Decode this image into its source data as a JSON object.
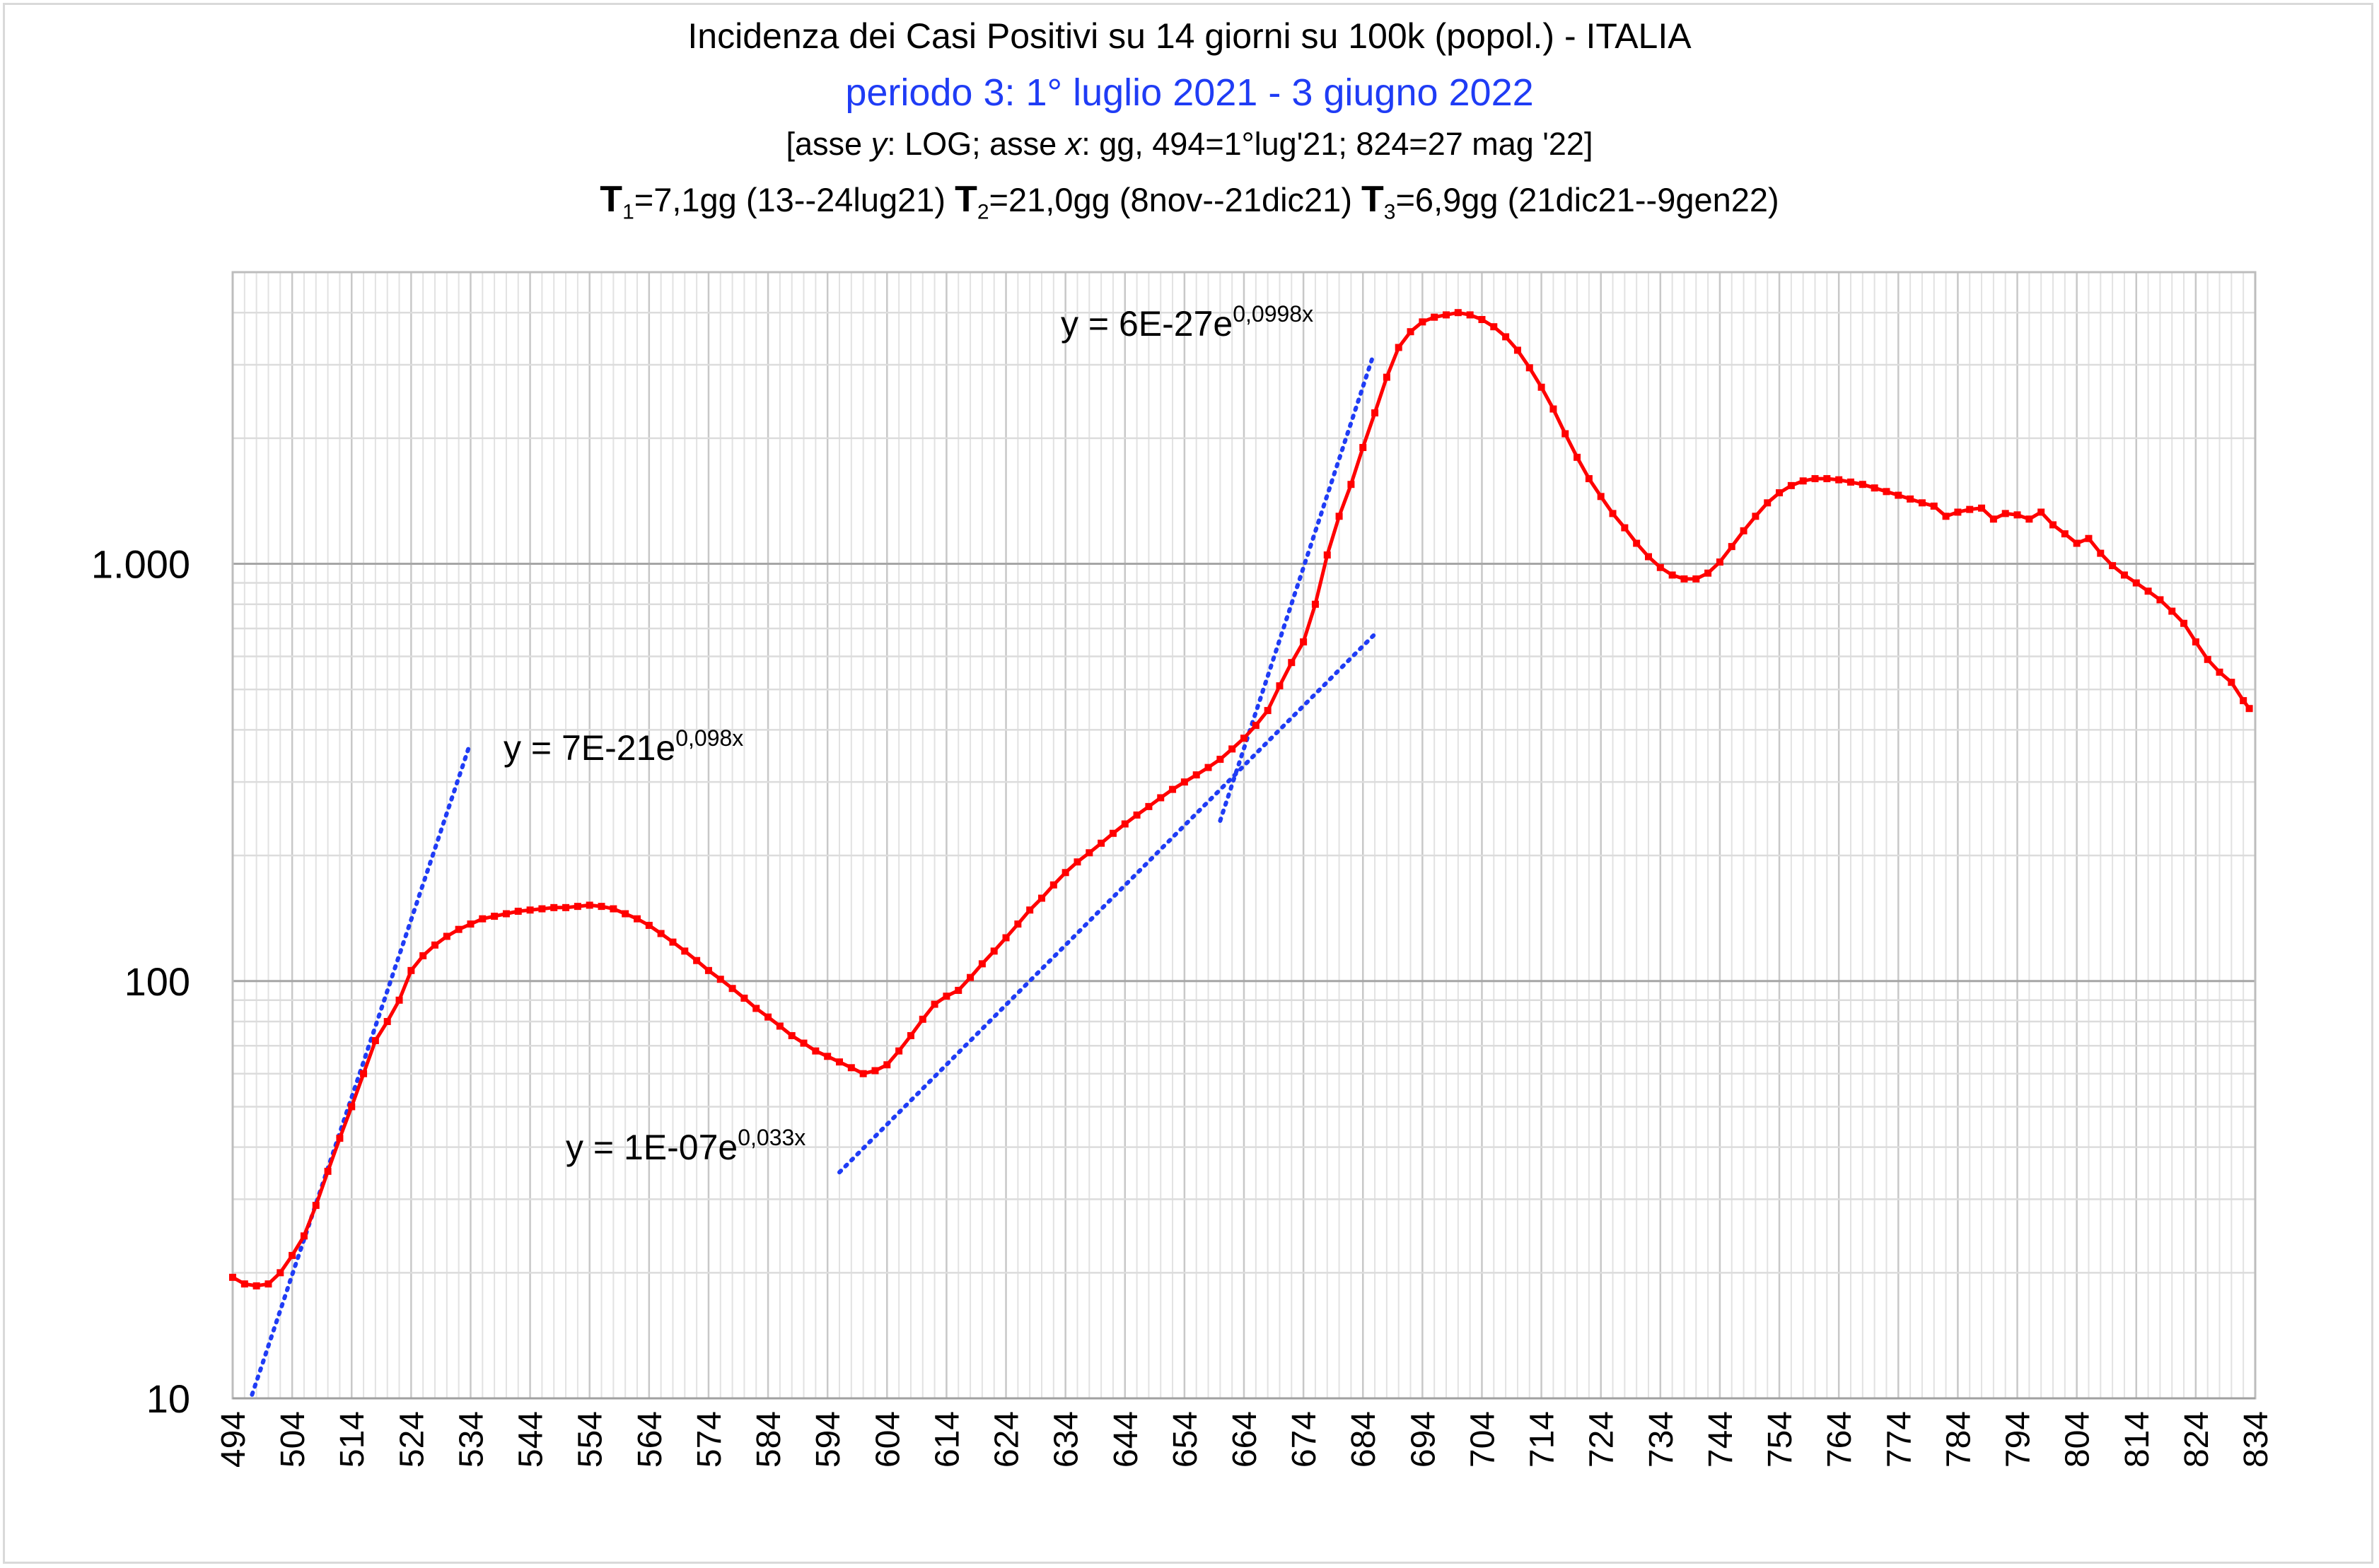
{
  "chart_data": {
    "type": "line",
    "title": "Incidenza dei Casi Positivi su 14 giorni su 100k (popol.) - ITALIA",
    "subtitle": "periodo 3: 1° luglio 2021 - 3 giugno 2022",
    "axis_note": {
      "prefix": "[asse ",
      "y_var": "y",
      "mid1": ": LOG; asse ",
      "x_var": "x",
      "suffix": ": gg, 494=1°lug'21; 824=27 mag '22]"
    },
    "doubling_times": [
      {
        "label": "T",
        "sub": "1",
        "text": "=7,1gg (13--24lug21)"
      },
      {
        "label": "T",
        "sub": "2",
        "text": "=21,0gg (8nov--21dic21)"
      },
      {
        "label": "T",
        "sub": "3",
        "text": "=6,9gg (21dic21--9gen22)"
      }
    ],
    "x_axis": {
      "min": 494,
      "max": 834,
      "ticks": [
        "494",
        "504",
        "514",
        "524",
        "534",
        "544",
        "554",
        "564",
        "574",
        "584",
        "594",
        "604",
        "614",
        "624",
        "634",
        "644",
        "654",
        "664",
        "674",
        "684",
        "694",
        "704",
        "714",
        "724",
        "734",
        "744",
        "754",
        "764",
        "774",
        "784",
        "794",
        "804",
        "814",
        "824",
        "834"
      ]
    },
    "y_axis": {
      "scale": "log",
      "min": 10,
      "max": 5000,
      "tick_labels": [
        {
          "value": 10,
          "label": "10"
        },
        {
          "value": 100,
          "label": "100"
        },
        {
          "value": 1000,
          "label": "1.000"
        }
      ]
    },
    "series": [
      {
        "color": "#ff0000",
        "points": [
          [
            494,
            19.5
          ],
          [
            496,
            18.8
          ],
          [
            498,
            18.6
          ],
          [
            500,
            18.8
          ],
          [
            502,
            20
          ],
          [
            504,
            22
          ],
          [
            506,
            24.5
          ],
          [
            508,
            29
          ],
          [
            510,
            35
          ],
          [
            512,
            42
          ],
          [
            514,
            50
          ],
          [
            516,
            60
          ],
          [
            518,
            72
          ],
          [
            520,
            80
          ],
          [
            522,
            90
          ],
          [
            524,
            106
          ],
          [
            526,
            115
          ],
          [
            528,
            122
          ],
          [
            530,
            128
          ],
          [
            532,
            133
          ],
          [
            534,
            137
          ],
          [
            536,
            141
          ],
          [
            538,
            143
          ],
          [
            540,
            145
          ],
          [
            542,
            147
          ],
          [
            544,
            148
          ],
          [
            546,
            149
          ],
          [
            548,
            150
          ],
          [
            550,
            150
          ],
          [
            552,
            151
          ],
          [
            554,
            152
          ],
          [
            556,
            151
          ],
          [
            558,
            149
          ],
          [
            560,
            145
          ],
          [
            562,
            141
          ],
          [
            564,
            136
          ],
          [
            566,
            130
          ],
          [
            568,
            124
          ],
          [
            570,
            118
          ],
          [
            572,
            112
          ],
          [
            574,
            106
          ],
          [
            576,
            101
          ],
          [
            578,
            96
          ],
          [
            580,
            91
          ],
          [
            582,
            86
          ],
          [
            584,
            82
          ],
          [
            586,
            78
          ],
          [
            588,
            74
          ],
          [
            590,
            71
          ],
          [
            592,
            68
          ],
          [
            594,
            66
          ],
          [
            596,
            64
          ],
          [
            598,
            62
          ],
          [
            600,
            60
          ],
          [
            602,
            61
          ],
          [
            604,
            63
          ],
          [
            606,
            68
          ],
          [
            608,
            74
          ],
          [
            610,
            81
          ],
          [
            612,
            88
          ],
          [
            614,
            92
          ],
          [
            616,
            95
          ],
          [
            618,
            102
          ],
          [
            620,
            110
          ],
          [
            622,
            118
          ],
          [
            624,
            127
          ],
          [
            626,
            137
          ],
          [
            628,
            148
          ],
          [
            630,
            158
          ],
          [
            632,
            170
          ],
          [
            634,
            182
          ],
          [
            636,
            193
          ],
          [
            638,
            203
          ],
          [
            640,
            214
          ],
          [
            642,
            226
          ],
          [
            644,
            238
          ],
          [
            646,
            250
          ],
          [
            648,
            262
          ],
          [
            650,
            275
          ],
          [
            652,
            288
          ],
          [
            654,
            300
          ],
          [
            656,
            312
          ],
          [
            658,
            325
          ],
          [
            660,
            340
          ],
          [
            662,
            360
          ],
          [
            664,
            382
          ],
          [
            666,
            410
          ],
          [
            668,
            445
          ],
          [
            670,
            510
          ],
          [
            672,
            580
          ],
          [
            674,
            650
          ],
          [
            676,
            800
          ],
          [
            678,
            1050
          ],
          [
            680,
            1300
          ],
          [
            682,
            1550
          ],
          [
            684,
            1900
          ],
          [
            686,
            2300
          ],
          [
            688,
            2800
          ],
          [
            690,
            3300
          ],
          [
            692,
            3600
          ],
          [
            694,
            3800
          ],
          [
            696,
            3900
          ],
          [
            698,
            3950
          ],
          [
            700,
            4000
          ],
          [
            702,
            3950
          ],
          [
            704,
            3850
          ],
          [
            706,
            3700
          ],
          [
            708,
            3500
          ],
          [
            710,
            3250
          ],
          [
            712,
            2950
          ],
          [
            714,
            2650
          ],
          [
            716,
            2350
          ],
          [
            718,
            2050
          ],
          [
            720,
            1800
          ],
          [
            722,
            1600
          ],
          [
            724,
            1450
          ],
          [
            726,
            1320
          ],
          [
            728,
            1220
          ],
          [
            730,
            1120
          ],
          [
            732,
            1040
          ],
          [
            734,
            980
          ],
          [
            736,
            940
          ],
          [
            738,
            920
          ],
          [
            740,
            920
          ],
          [
            742,
            950
          ],
          [
            744,
            1010
          ],
          [
            746,
            1100
          ],
          [
            748,
            1200
          ],
          [
            750,
            1300
          ],
          [
            752,
            1400
          ],
          [
            754,
            1480
          ],
          [
            756,
            1540
          ],
          [
            758,
            1580
          ],
          [
            760,
            1600
          ],
          [
            762,
            1600
          ],
          [
            764,
            1590
          ],
          [
            766,
            1570
          ],
          [
            768,
            1550
          ],
          [
            770,
            1520
          ],
          [
            772,
            1490
          ],
          [
            774,
            1460
          ],
          [
            776,
            1430
          ],
          [
            778,
            1400
          ],
          [
            780,
            1375
          ],
          [
            782,
            1300
          ],
          [
            784,
            1330
          ],
          [
            786,
            1350
          ],
          [
            788,
            1360
          ],
          [
            790,
            1280
          ],
          [
            792,
            1320
          ],
          [
            794,
            1310
          ],
          [
            796,
            1280
          ],
          [
            798,
            1330
          ],
          [
            800,
            1240
          ],
          [
            802,
            1180
          ],
          [
            804,
            1120
          ],
          [
            806,
            1150
          ],
          [
            808,
            1060
          ],
          [
            810,
            990
          ],
          [
            812,
            940
          ],
          [
            814,
            900
          ],
          [
            816,
            860
          ],
          [
            818,
            820
          ],
          [
            820,
            770
          ],
          [
            822,
            720
          ],
          [
            824,
            650
          ],
          [
            826,
            590
          ],
          [
            828,
            550
          ],
          [
            830,
            520
          ],
          [
            832,
            470
          ],
          [
            833,
            450
          ]
        ]
      }
    ],
    "trendlines": [
      {
        "equation": "y = 7E-21e",
        "exponent": "0,098x",
        "x_range": [
          496,
          533.7
        ],
        "a": 7e-21,
        "b": 0.098
      },
      {
        "equation": "y = 1E-07e",
        "exponent": "0,033x",
        "x_range": [
          596,
          686
        ],
        "a": 1e-07,
        "b": 0.033
      },
      {
        "equation": "y = 6E-27e",
        "exponent": "0,0998x",
        "x_range": [
          660,
          685.5
        ],
        "a": 6e-27,
        "b": 0.0998
      }
    ],
    "grid": true,
    "legend": "none"
  }
}
